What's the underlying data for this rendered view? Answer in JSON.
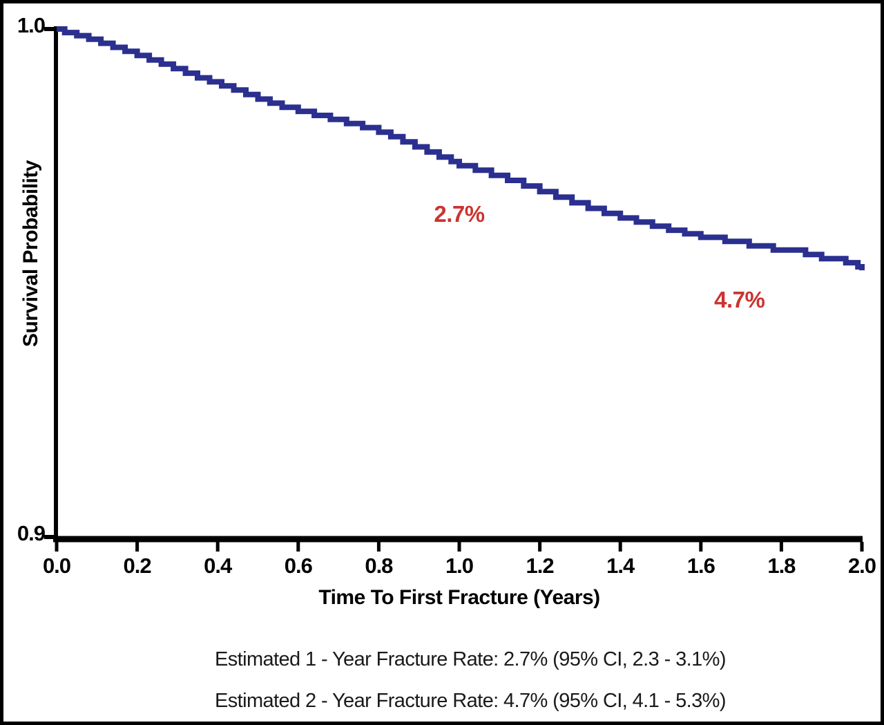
{
  "figure": {
    "background": "#ffffff",
    "border_color": "#000000",
    "axis_color": "#000000"
  },
  "chart_data": {
    "type": "line",
    "subtype": "kaplan-meier-step",
    "title": "",
    "xlabel": "Time To First Fracture (Years)",
    "ylabel": "Survival Probability",
    "xlim": [
      0.0,
      2.0
    ],
    "ylim": [
      0.9,
      1.0
    ],
    "grid": false,
    "legend_position": "none",
    "line_color": "#2b2f8f",
    "annotation_color": "#cc3330",
    "x_ticks": [
      {
        "label": "0.0",
        "value": 0.0
      },
      {
        "label": "0.2",
        "value": 0.2
      },
      {
        "label": "0.4",
        "value": 0.4
      },
      {
        "label": "0.6",
        "value": 0.6
      },
      {
        "label": "0.8",
        "value": 0.8
      },
      {
        "label": "1.0",
        "value": 1.0
      },
      {
        "label": "1.2",
        "value": 1.2
      },
      {
        "label": "1.4",
        "value": 1.4
      },
      {
        "label": "1.6",
        "value": 1.6
      },
      {
        "label": "1.8",
        "value": 1.8
      },
      {
        "label": "2.0",
        "value": 2.0
      }
    ],
    "y_ticks": [
      {
        "label": "1.0",
        "value": 1.0
      },
      {
        "label": "0.9",
        "value": 0.9
      }
    ],
    "annotations": [
      {
        "text": "2.7%",
        "t": 1.0,
        "s": 0.9633
      },
      {
        "text": "4.7%",
        "t": 1.696,
        "s": 0.9464
      }
    ],
    "series": [
      {
        "name": "Survival Probability",
        "points": [
          [
            0.0,
            1.0
          ],
          [
            0.02,
            0.9993
          ],
          [
            0.05,
            0.9987
          ],
          [
            0.08,
            0.998
          ],
          [
            0.11,
            0.9972
          ],
          [
            0.14,
            0.9964
          ],
          [
            0.17,
            0.9956
          ],
          [
            0.2,
            0.9948
          ],
          [
            0.23,
            0.9939
          ],
          [
            0.26,
            0.9931
          ],
          [
            0.29,
            0.9922
          ],
          [
            0.32,
            0.9913
          ],
          [
            0.35,
            0.9904
          ],
          [
            0.38,
            0.9896
          ],
          [
            0.41,
            0.9888
          ],
          [
            0.44,
            0.988
          ],
          [
            0.47,
            0.9871
          ],
          [
            0.5,
            0.9862
          ],
          [
            0.53,
            0.9854
          ],
          [
            0.56,
            0.9846
          ],
          [
            0.6,
            0.9838
          ],
          [
            0.64,
            0.983
          ],
          [
            0.68,
            0.9822
          ],
          [
            0.72,
            0.9814
          ],
          [
            0.76,
            0.9806
          ],
          [
            0.8,
            0.9797
          ],
          [
            0.83,
            0.9788
          ],
          [
            0.86,
            0.9778
          ],
          [
            0.89,
            0.9768
          ],
          [
            0.92,
            0.9758
          ],
          [
            0.95,
            0.9748
          ],
          [
            0.98,
            0.9739
          ],
          [
            1.0,
            0.9731
          ],
          [
            1.04,
            0.9722
          ],
          [
            1.08,
            0.9712
          ],
          [
            1.12,
            0.9702
          ],
          [
            1.16,
            0.9691
          ],
          [
            1.2,
            0.968
          ],
          [
            1.24,
            0.9669
          ],
          [
            1.28,
            0.9658
          ],
          [
            1.32,
            0.9647
          ],
          [
            1.36,
            0.9637
          ],
          [
            1.4,
            0.9628
          ],
          [
            1.44,
            0.962
          ],
          [
            1.48,
            0.9612
          ],
          [
            1.52,
            0.9604
          ],
          [
            1.56,
            0.9597
          ],
          [
            1.6,
            0.959
          ],
          [
            1.66,
            0.9582
          ],
          [
            1.72,
            0.9573
          ],
          [
            1.78,
            0.9565
          ],
          [
            1.86,
            0.9556
          ],
          [
            1.9,
            0.9548
          ],
          [
            1.96,
            0.954
          ],
          [
            1.99,
            0.9532
          ],
          [
            2.0,
            0.9525
          ]
        ]
      }
    ],
    "estimates": [
      {
        "horizon_years": 1,
        "fracture_rate_pct": 2.7,
        "ci95_low_pct": 2.3,
        "ci95_high_pct": 3.1
      },
      {
        "horizon_years": 2,
        "fracture_rate_pct": 4.7,
        "ci95_low_pct": 4.1,
        "ci95_high_pct": 5.3
      }
    ]
  },
  "captions": {
    "line1": "Estimated 1 - Year Fracture Rate: 2.7% (95% CI, 2.3 - 3.1%)",
    "line2": "Estimated 2 - Year Fracture Rate: 4.7% (95% CI, 4.1 - 5.3%)"
  }
}
